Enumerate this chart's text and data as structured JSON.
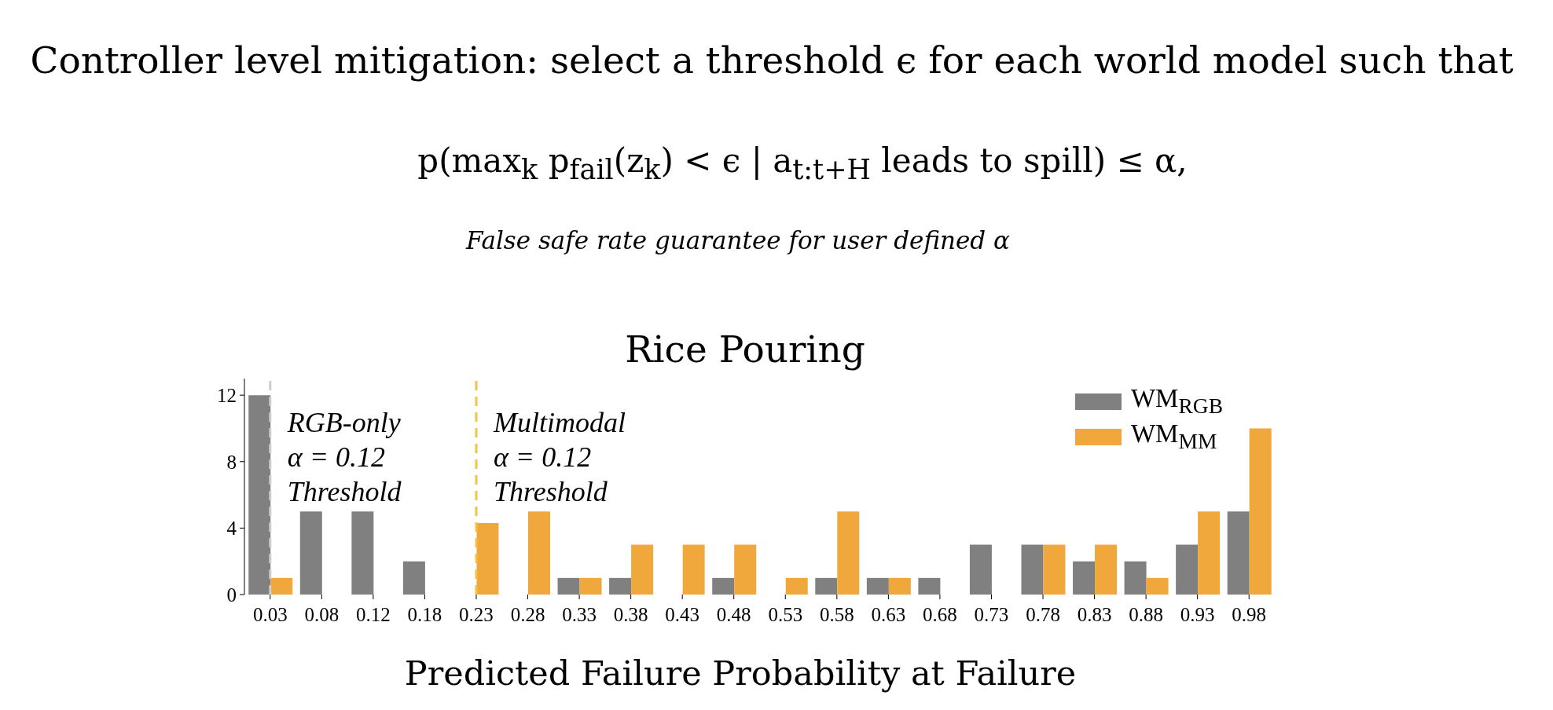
{
  "chart_data": {
    "type": "bar",
    "title": "Rice Pouring",
    "xlabel": "Predicted Failure Probability at Failure",
    "annotations": [
      "Controller level mitigation: select a threshold ϵ for each world model such that",
      "p(max$_{k}$ p$_{fail}$(z$_{k}$) < ϵ | a$_{t:t+H}$ leads to spill) ≤ α,",
      "False safe rate guarantee for user defined α"
    ],
    "categories": [
      "0.03",
      "0.08",
      "0.12",
      "0.18",
      "0.23",
      "0.28",
      "0.33",
      "0.38",
      "0.43",
      "0.48",
      "0.53",
      "0.58",
      "0.63",
      "0.68",
      "0.73",
      "0.78",
      "0.83",
      "0.88",
      "0.93",
      "0.98"
    ],
    "series": [
      {
        "name": "WM$_{RGB}$",
        "color": "#808080",
        "values": [
          12,
          5,
          5,
          2,
          0,
          0,
          1,
          1,
          0,
          1,
          0,
          1,
          1,
          1,
          3,
          3,
          2,
          2,
          3,
          5
        ]
      },
      {
        "name": "WM$_{MM}$",
        "color": "#f0a83c",
        "values": [
          1,
          0,
          0,
          0,
          4.3,
          5,
          1,
          3,
          3,
          3,
          1,
          5,
          1,
          0,
          0,
          3,
          3,
          1,
          5,
          10
        ]
      }
    ],
    "ylim": [
      0,
      13
    ],
    "yticks": [
      0,
      4,
      8,
      12
    ],
    "legend": "top right",
    "ref_lines": [
      {
        "axis": "x",
        "value": "0.03",
        "label": "RGB-only\nα = 0.12\nThreshold",
        "color": "#cccccc",
        "line_style": "dashed"
      },
      {
        "axis": "x",
        "value": "0.23",
        "label": "Multimodal\nα = 0.12\nThreshold",
        "color": "#f5c242",
        "line_style": "dashed"
      }
    ]
  }
}
